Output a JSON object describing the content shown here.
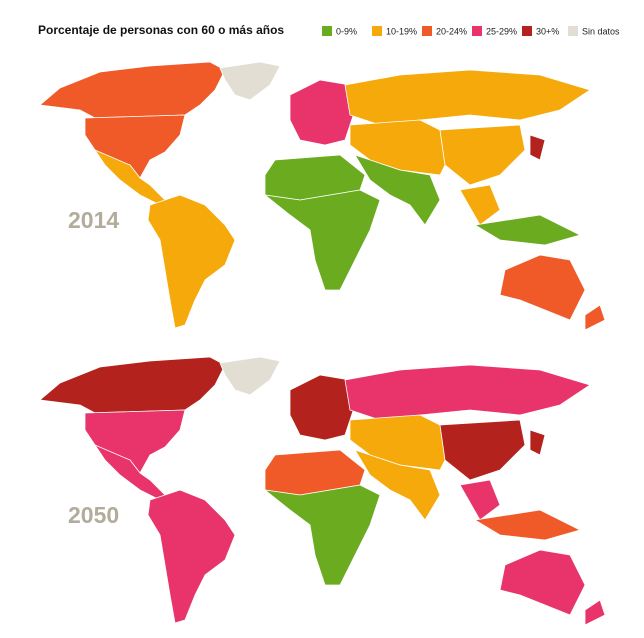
{
  "title": "Porcentaje de personas con 60 o más años",
  "legend": {
    "items": [
      {
        "label": "0-9%",
        "color": "#6aab1f"
      },
      {
        "label": "10-19%",
        "color": "#f6a90a"
      },
      {
        "label": "20-24%",
        "color": "#f05a28"
      },
      {
        "label": "25-29%",
        "color": "#e8336b"
      },
      {
        "label": "30+%",
        "color": "#b3221c"
      },
      {
        "label": "Sin datos",
        "color": "#e3ded4"
      }
    ]
  },
  "maps": [
    {
      "year": "2014"
    },
    {
      "year": "2050"
    }
  ]
}
